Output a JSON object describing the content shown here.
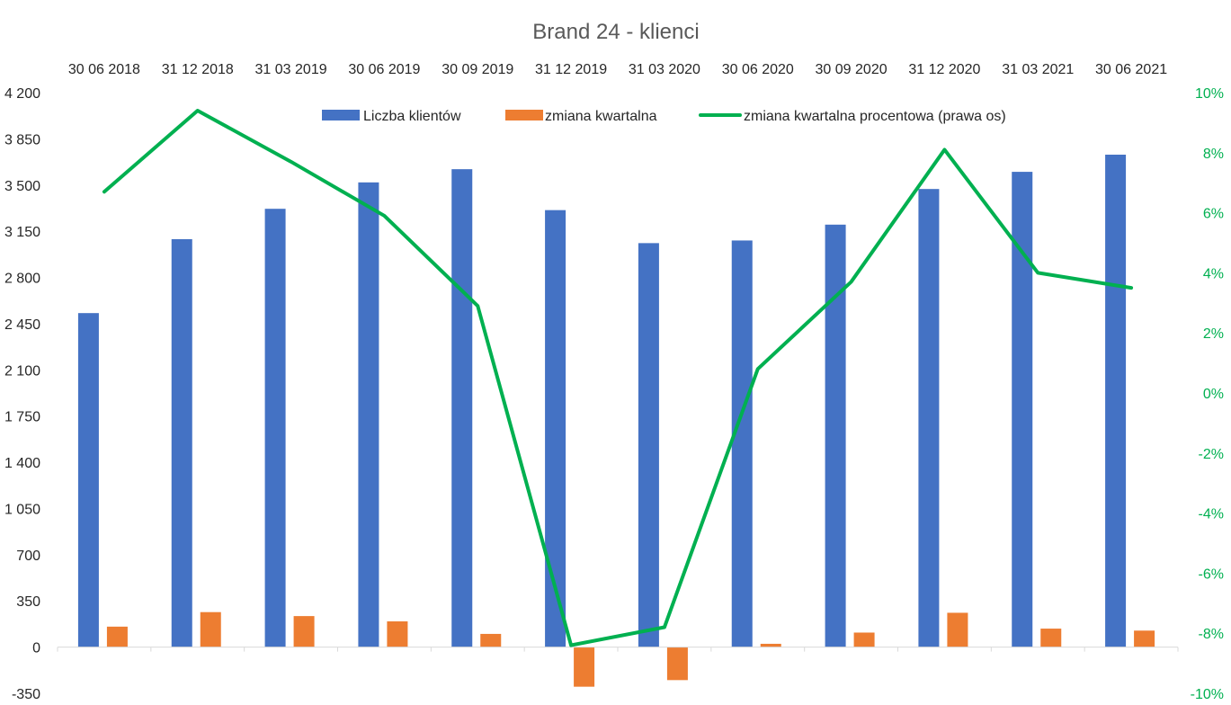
{
  "chart_data": {
    "type": "bar",
    "title": "Brand 24 - klienci",
    "categories": [
      "30 06 2018",
      "31 12 2018",
      "31 03 2019",
      "30 06 2019",
      "30 09 2019",
      "31 12 2019",
      "31 03 2020",
      "30 06 2020",
      "30 09 2020",
      "31 12 2020",
      "31 03 2021",
      "30 06 2021"
    ],
    "series": [
      {
        "name": "Liczba klientów",
        "type": "bar",
        "axis": "left",
        "color": "#4472c4",
        "values": [
          2530,
          3090,
          3320,
          3520,
          3620,
          3310,
          3060,
          3080,
          3200,
          3470,
          3600,
          3730
        ]
      },
      {
        "name": "zmiana kwartalna",
        "type": "bar",
        "axis": "left",
        "color": "#ed7d31",
        "values": [
          155,
          265,
          235,
          195,
          100,
          -300,
          -250,
          25,
          110,
          260,
          140,
          125
        ]
      },
      {
        "name": "zmiana kwartalna procentowa (prawa os)",
        "type": "line",
        "axis": "right",
        "color": "#00b050",
        "values": [
          6.7,
          9.4,
          7.7,
          5.9,
          2.9,
          -8.4,
          -7.8,
          0.8,
          3.7,
          8.1,
          4.0,
          3.5
        ]
      }
    ],
    "y_left": {
      "min": -350,
      "max": 4200,
      "step": 350,
      "tick_labels": [
        "-350",
        "0",
        "350",
        "700",
        "1 050",
        "1 400",
        "1 750",
        "2 100",
        "2 450",
        "2 800",
        "3 150",
        "3 500",
        "3 850",
        "4 200"
      ]
    },
    "y_right": {
      "min": -10,
      "max": 10,
      "step": 2,
      "tick_labels": [
        "-10%",
        "-8%",
        "-6%",
        "-4%",
        "-2%",
        "0%",
        "2%",
        "4%",
        "6%",
        "8%",
        "10%"
      ]
    },
    "category_axis_position": "top",
    "legend_position": "top",
    "grid": false
  }
}
